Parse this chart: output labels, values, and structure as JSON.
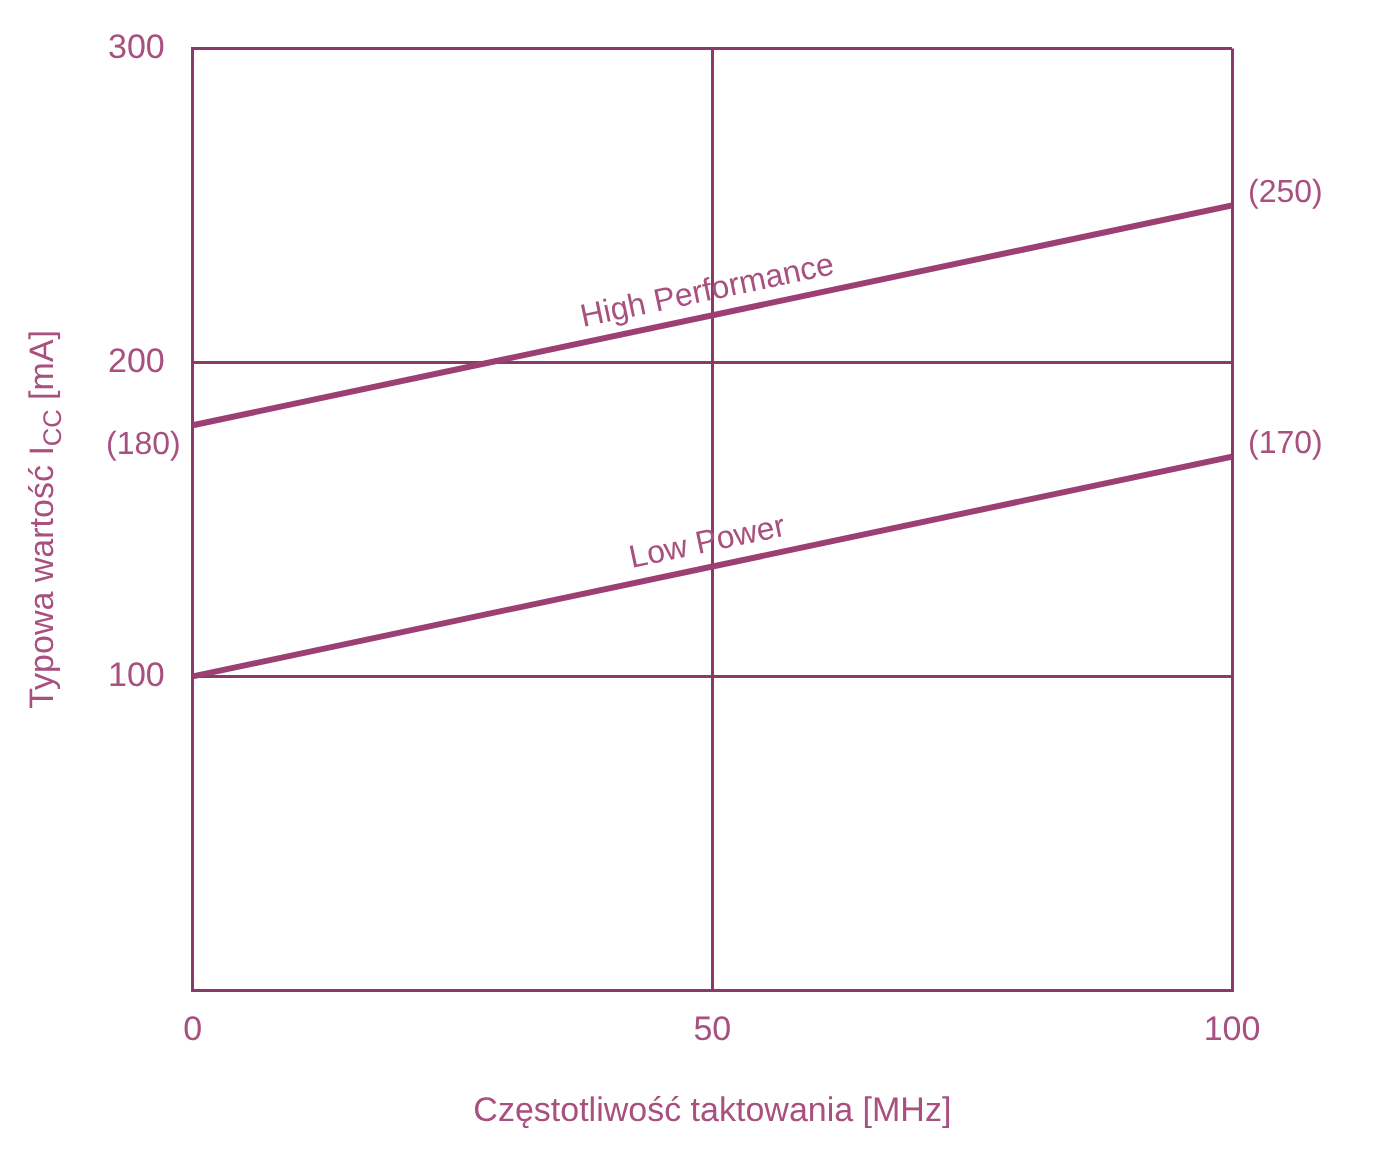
{
  "chart_data": {
    "type": "line",
    "xlabel": "Częstotliwość taktowania [MHz]",
    "ylabel": "Typowa wartość I$_{CC}$ [mA]",
    "x": [
      0,
      100
    ],
    "series": [
      {
        "name": "High Performance",
        "color": "#9c3f73",
        "values": [
          180,
          250
        ],
        "value_labels": [
          "(180)",
          "(250)"
        ]
      },
      {
        "name": "Low Power",
        "color": "#9c3f73",
        "values": [
          100,
          170
        ],
        "value_labels": [
          null,
          "(170)"
        ]
      }
    ],
    "xlim": [
      0,
      100
    ],
    "xticks": [
      0,
      50,
      100
    ],
    "ylim": [
      0,
      300
    ],
    "yticks": [
      100,
      200,
      300
    ],
    "grid": true,
    "legend": false,
    "marker": "none",
    "line_style": "solid"
  }
}
